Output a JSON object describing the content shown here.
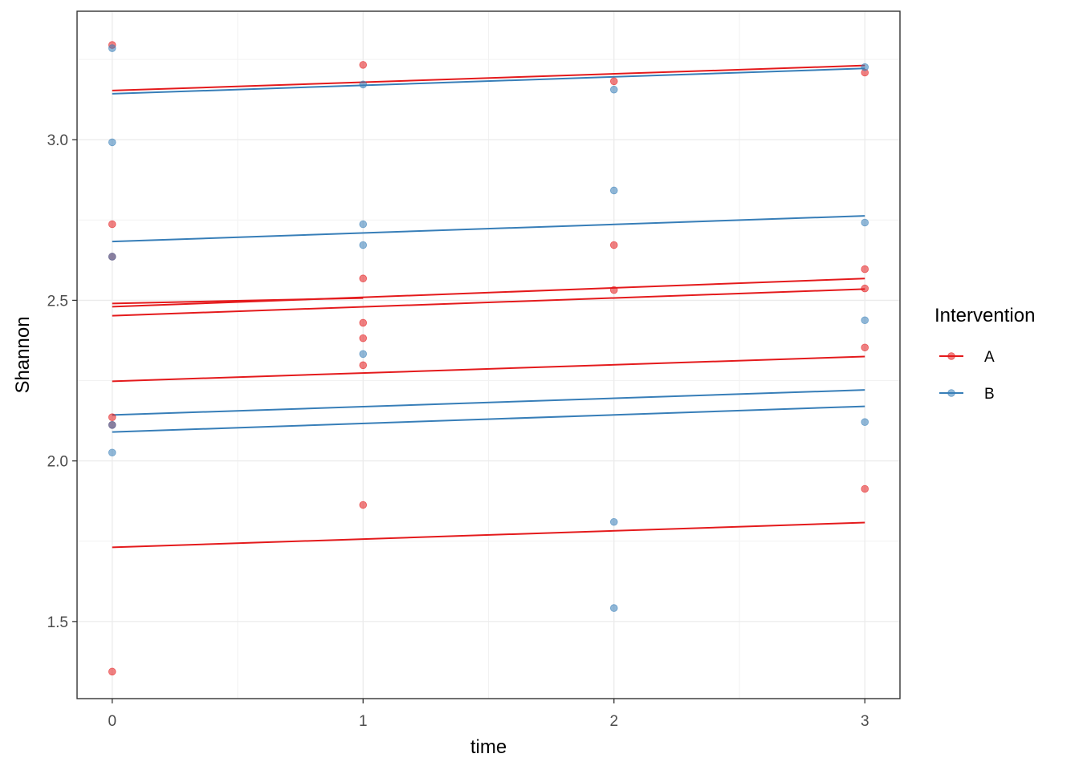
{
  "chart_data": {
    "type": "scatter",
    "xlabel": "time",
    "ylabel": "Shannon",
    "xlim": [
      -0.14,
      3.14
    ],
    "ylim": [
      1.26,
      3.4
    ],
    "x_ticks": [
      0,
      1,
      2,
      3
    ],
    "x_tick_labels": [
      "0",
      "1",
      "2",
      "3"
    ],
    "y_ticks": [
      1.5,
      2.0,
      2.5,
      3.0
    ],
    "y_tick_labels": [
      "1.5",
      "2.0",
      "2.5",
      "3.0"
    ],
    "grid": true,
    "legend": {
      "title": "Intervention",
      "position": "right",
      "entries": [
        {
          "label": "A",
          "color": "#E41A1C"
        },
        {
          "label": "B",
          "color": "#377EB8"
        }
      ]
    },
    "series": [
      {
        "name": "A",
        "color": "#E41A1C",
        "points": [
          {
            "x": 0,
            "y": 3.295
          },
          {
            "x": 0,
            "y": 2.737
          },
          {
            "x": 0,
            "y": 2.636
          },
          {
            "x": 0,
            "y": 2.136
          },
          {
            "x": 0,
            "y": 2.112
          },
          {
            "x": 0,
            "y": 1.344
          },
          {
            "x": 1,
            "y": 3.233
          },
          {
            "x": 1,
            "y": 2.568
          },
          {
            "x": 1,
            "y": 2.43
          },
          {
            "x": 1,
            "y": 2.382
          },
          {
            "x": 1,
            "y": 2.298
          },
          {
            "x": 1,
            "y": 1.863
          },
          {
            "x": 2,
            "y": 3.182
          },
          {
            "x": 2,
            "y": 2.672
          },
          {
            "x": 2,
            "y": 2.532
          },
          {
            "x": 3,
            "y": 3.209
          },
          {
            "x": 3,
            "y": 2.597
          },
          {
            "x": 3,
            "y": 2.537
          },
          {
            "x": 3,
            "y": 2.353
          },
          {
            "x": 3,
            "y": 1.913
          }
        ],
        "fit_lines": [
          {
            "x": [
              0,
              3
            ],
            "y": [
              3.153,
              3.231
            ]
          },
          {
            "x": [
              0,
              1
            ],
            "y": [
              2.49,
              2.507
            ]
          },
          {
            "x": [
              0,
              3
            ],
            "y": [
              2.48,
              2.568
            ]
          },
          {
            "x": [
              0,
              3
            ],
            "y": [
              2.452,
              2.535
            ]
          },
          {
            "x": [
              0,
              3
            ],
            "y": [
              2.248,
              2.325
            ]
          },
          {
            "x": [
              0,
              3
            ],
            "y": [
              1.731,
              1.808
            ]
          }
        ]
      },
      {
        "name": "B",
        "color": "#377EB8",
        "points": [
          {
            "x": 0,
            "y": 3.285
          },
          {
            "x": 0,
            "y": 2.992
          },
          {
            "x": 0,
            "y": 2.636
          },
          {
            "x": 0,
            "y": 2.112
          },
          {
            "x": 0,
            "y": 2.026
          },
          {
            "x": 1,
            "y": 3.172
          },
          {
            "x": 1,
            "y": 2.737
          },
          {
            "x": 1,
            "y": 2.672
          },
          {
            "x": 1,
            "y": 2.333
          },
          {
            "x": 2,
            "y": 3.156
          },
          {
            "x": 2,
            "y": 2.842
          },
          {
            "x": 2,
            "y": 1.81
          },
          {
            "x": 2,
            "y": 1.542
          },
          {
            "x": 3,
            "y": 3.226
          },
          {
            "x": 3,
            "y": 2.742
          },
          {
            "x": 3,
            "y": 2.438
          },
          {
            "x": 3,
            "y": 2.121
          }
        ],
        "fit_lines": [
          {
            "x": [
              0,
              3
            ],
            "y": [
              3.143,
              3.222
            ]
          },
          {
            "x": [
              0,
              3
            ],
            "y": [
              2.683,
              2.763
            ]
          },
          {
            "x": [
              0,
              3
            ],
            "y": [
              2.143,
              2.221
            ]
          },
          {
            "x": [
              0,
              3
            ],
            "y": [
              2.09,
              2.17
            ]
          }
        ]
      }
    ]
  }
}
